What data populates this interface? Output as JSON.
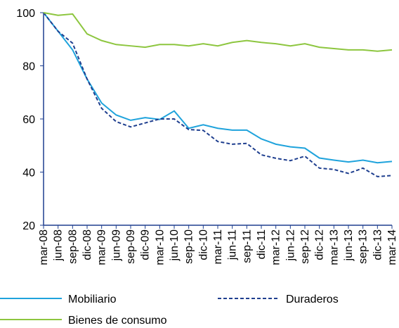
{
  "chart_data": {
    "type": "line",
    "categories": [
      "mar-08",
      "jun-08",
      "sep-08",
      "dic-08",
      "mar-09",
      "jun-09",
      "sep-09",
      "dic-09",
      "mar-10",
      "jun-10",
      "sep-10",
      "dic-10",
      "mar-11",
      "jun-11",
      "sep-11",
      "dic-11",
      "mar-12",
      "jun-12",
      "sep-12",
      "dic-12",
      "mar-13",
      "jun-13",
      "sep-13",
      "dic-13",
      "mar-14"
    ],
    "series": [
      {
        "name": "Mobiliario",
        "color": "#1fa3dc",
        "dash": false,
        "values": [
          100,
          93,
          86,
          75,
          66,
          61.5,
          59.5,
          60.5,
          59.8,
          63,
          56.5,
          57.8,
          56.5,
          55.8,
          55.8,
          52.5,
          50.5,
          49.5,
          49,
          45.3,
          44.5,
          43.8,
          44.5,
          43.5,
          44
        ]
      },
      {
        "name": "Duraderos",
        "color": "#1f3f8f",
        "dash": true,
        "values": [
          100,
          93,
          88.5,
          75,
          64,
          59,
          57,
          58.5,
          60,
          60,
          56,
          55.7,
          51.5,
          50.5,
          50.8,
          46.5,
          45.2,
          44.3,
          46,
          41.5,
          41,
          39.5,
          41.5,
          38.3,
          38.7
        ]
      },
      {
        "name": "Bienes de consumo",
        "color": "#8dc63f",
        "dash": false,
        "values": [
          100,
          99,
          99.5,
          92,
          89.5,
          88,
          87.5,
          87,
          88,
          88,
          87.5,
          88.3,
          87.5,
          88.8,
          89.5,
          88.8,
          88.3,
          87.5,
          88.3,
          87,
          86.5,
          86,
          86,
          85.5,
          86
        ]
      }
    ],
    "ylim": [
      20,
      100
    ],
    "yticks": [
      20,
      40,
      60,
      80,
      100
    ]
  }
}
